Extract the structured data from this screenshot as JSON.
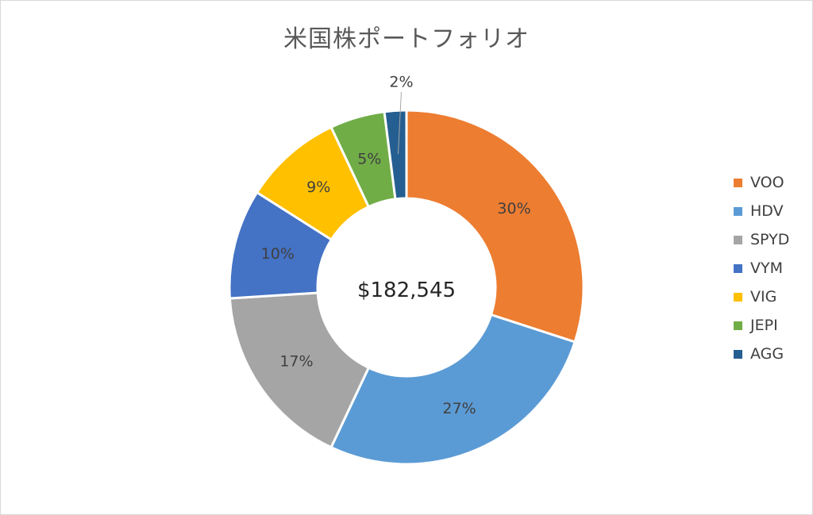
{
  "chart_data": {
    "type": "pie",
    "variant": "donut",
    "title": "米国株ポートフォリオ",
    "center_label": "$182,545",
    "categories": [
      "VOO",
      "HDV",
      "SPYD",
      "VYM",
      "VIG",
      "JEPI",
      "AGG"
    ],
    "values": [
      30,
      27,
      17,
      10,
      9,
      5,
      2
    ],
    "labels": [
      "30%",
      "27%",
      "17%",
      "10%",
      "9%",
      "5%",
      "2%"
    ],
    "colors": [
      "#ED7D31",
      "#5B9BD5",
      "#A5A5A5",
      "#4472C4",
      "#FFC000",
      "#70AD47",
      "#255E91"
    ],
    "legend_position": "right"
  }
}
